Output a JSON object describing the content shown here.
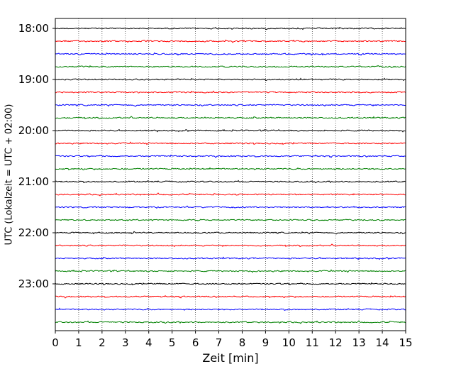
{
  "chart_data": {
    "type": "line",
    "title": "",
    "xlabel": "Zeit  [min]",
    "ylabel": "UTC (Lokalzeit = UTC + 02:00)",
    "xlim": [
      0,
      15
    ],
    "x_ticks": [
      "0",
      "1",
      "2",
      "3",
      "4",
      "5",
      "6",
      "7",
      "8",
      "9",
      "10",
      "11",
      "12",
      "13",
      "14",
      "15"
    ],
    "y_tick_labels": [
      "18:00",
      "19:00",
      "20:00",
      "21:00",
      "22:00",
      "23:00"
    ],
    "trace_interval_minutes": 15,
    "start_time": "18:00",
    "trace_count": 24,
    "trace_colors": [
      "#000000",
      "#ff0000",
      "#0000ff",
      "#008000"
    ],
    "grid": "vertical dotted lines at each minute"
  }
}
